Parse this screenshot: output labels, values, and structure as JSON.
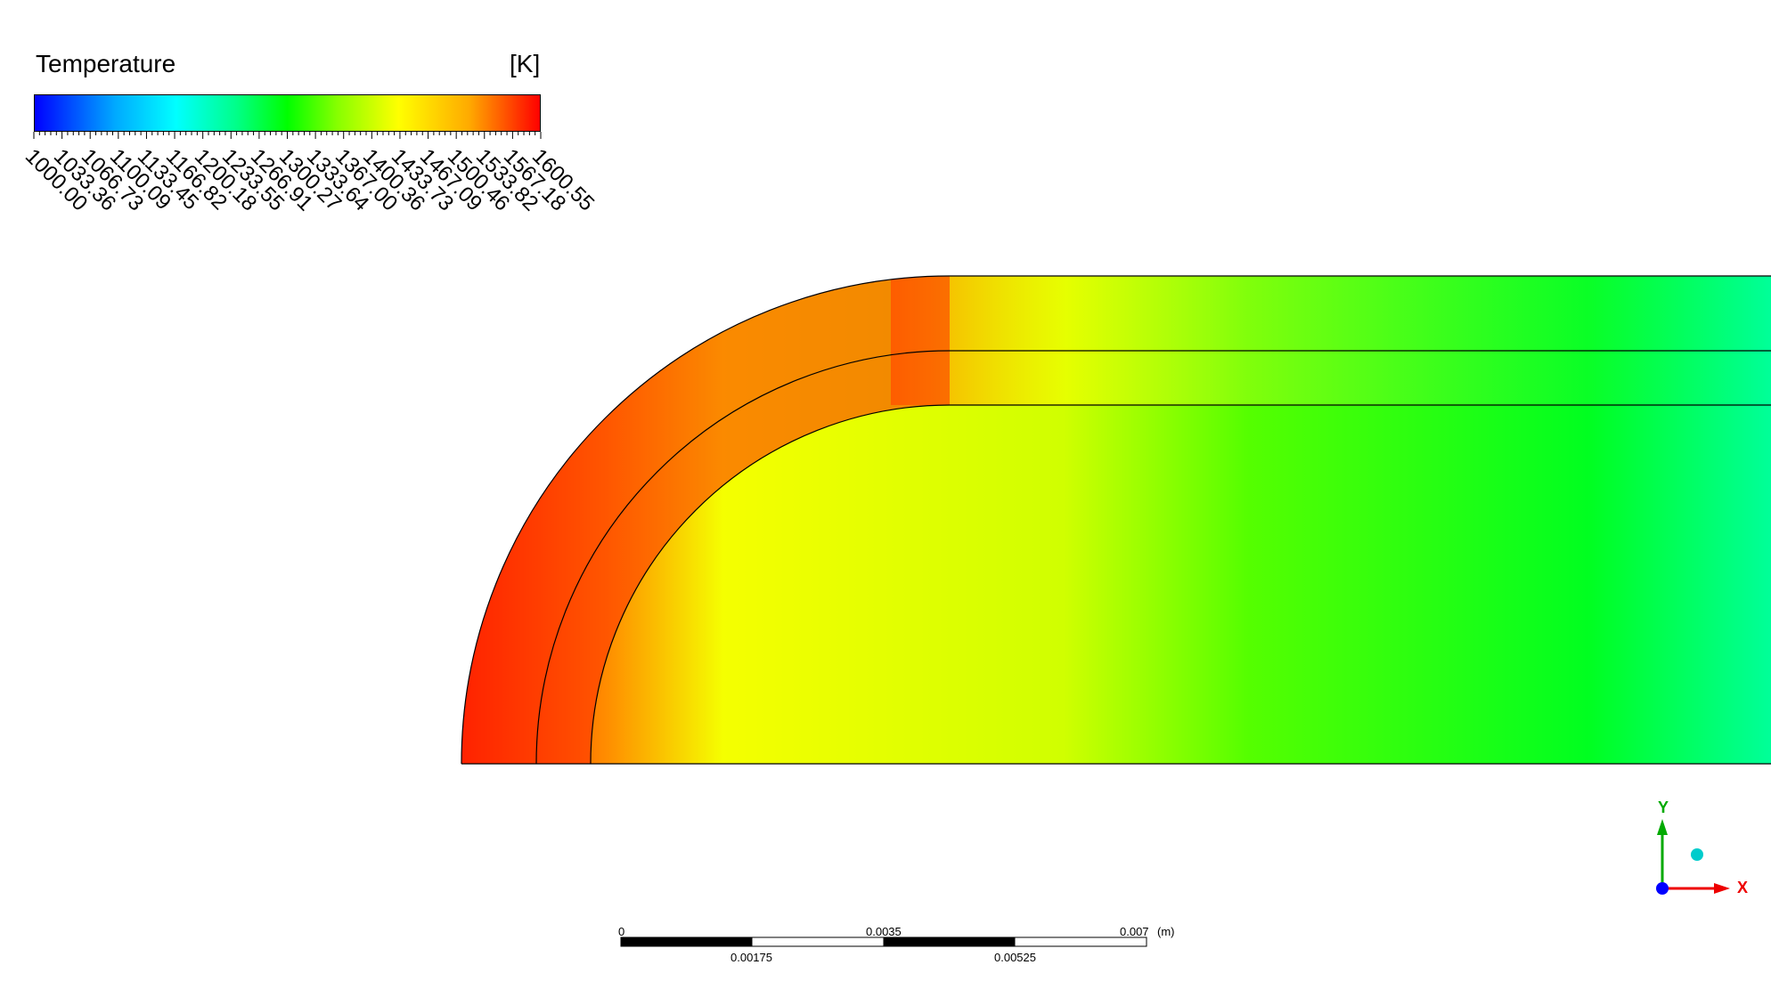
{
  "legend": {
    "title": "Temperature",
    "unit": "[K]",
    "tick_labels": [
      "1000.00",
      "1033.36",
      "1066.73",
      "1100.09",
      "1133.45",
      "1166.82",
      "1200.18",
      "1233.55",
      "1266.91",
      "1300.27",
      "1333.64",
      "1367.00",
      "1400.36",
      "1433.73",
      "1467.09",
      "1500.46",
      "1533.82",
      "1567.18",
      "1600.55"
    ],
    "colors": [
      "#0000ff",
      "#00aaff",
      "#00ffff",
      "#00ff88",
      "#00ff00",
      "#88ff00",
      "#ffff00",
      "#ffaa00",
      "#ff0000"
    ]
  },
  "scale_bar": {
    "top_labels": [
      "0",
      "0.0035",
      "0.007"
    ],
    "bottom_labels": [
      "0.00175",
      "0.00525"
    ],
    "unit": "(m)"
  },
  "axes": {
    "x_label": "X",
    "y_label": "Y"
  }
}
